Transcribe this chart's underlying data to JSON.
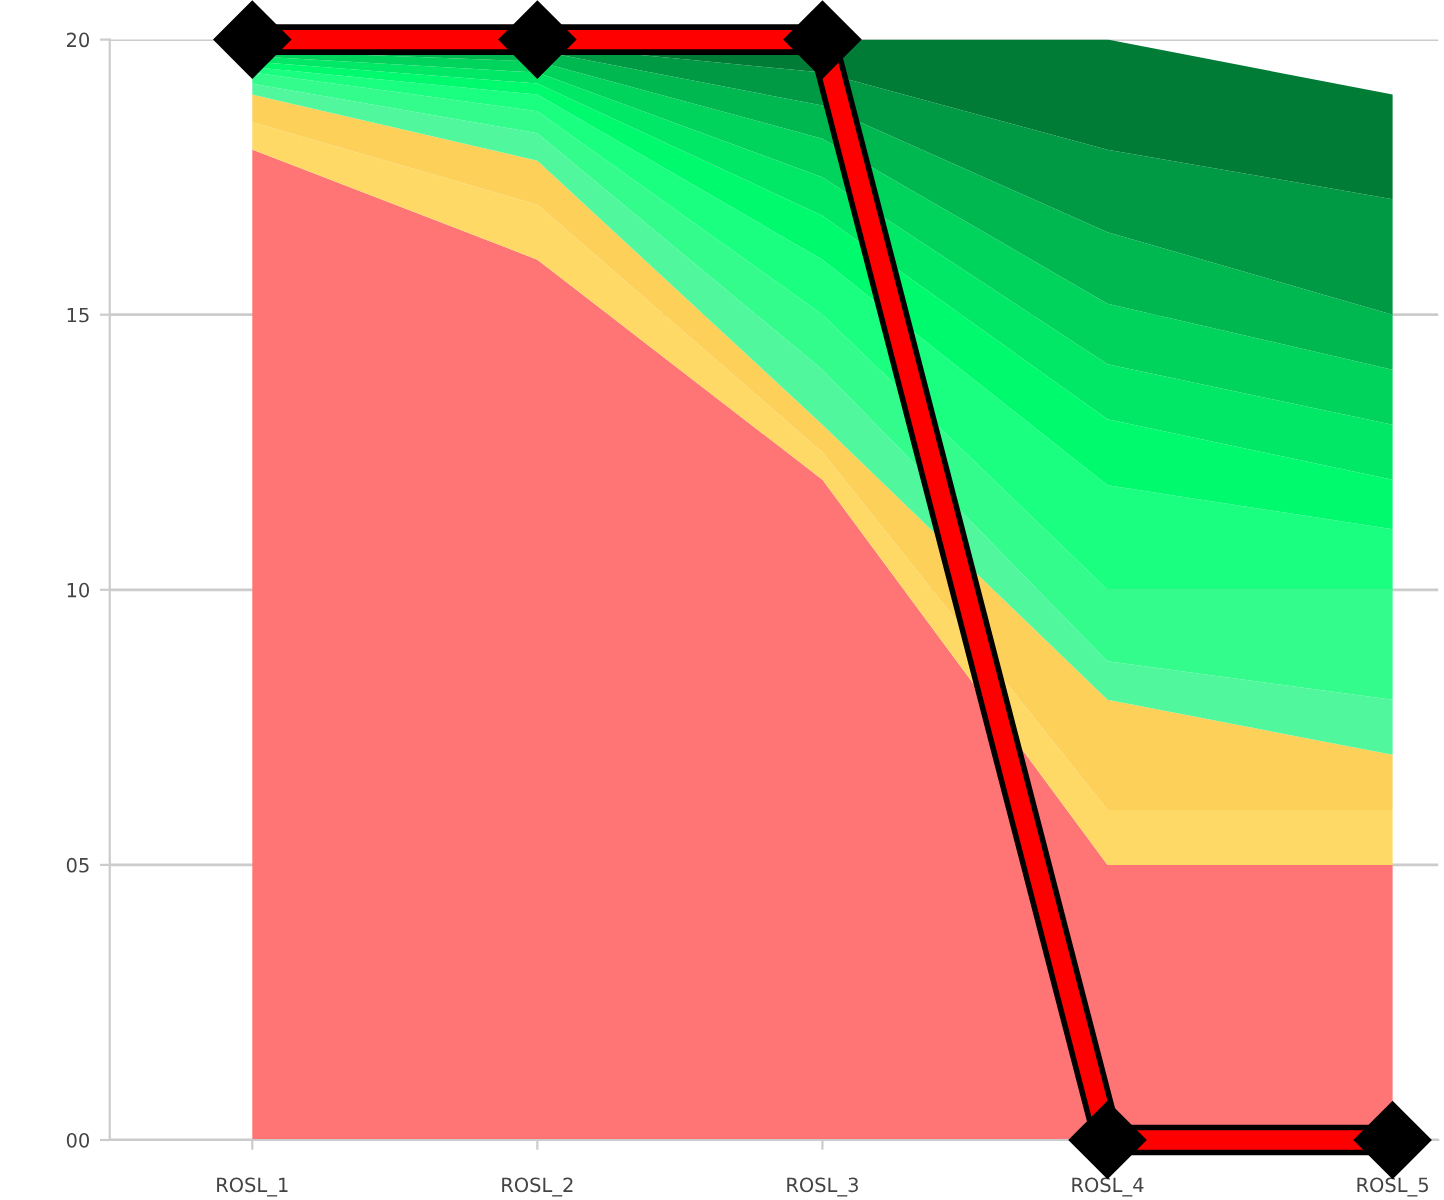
{
  "chart_data": {
    "type": "area",
    "stacked": true,
    "categories": [
      "ROSL_1",
      "ROSL_2",
      "ROSL_3",
      "ROSL_4",
      "ROSL_5"
    ],
    "ylim": [
      0,
      20
    ],
    "yticks": [
      {
        "value": 0,
        "label": "00"
      },
      {
        "value": 5,
        "label": "05"
      },
      10,
      15,
      20
    ],
    "grid": "y",
    "series": [
      {
        "color": "#ff7575",
        "values": [
          18,
          16,
          12,
          5,
          5
        ]
      },
      {
        "color": "#ffd966",
        "values": [
          0.5,
          1,
          0.5,
          1,
          1
        ]
      },
      {
        "color": "#fdd05a",
        "values": [
          0.5,
          0.8,
          0.5,
          2,
          1
        ]
      },
      {
        "color": "#50f79c",
        "values": [
          0.2,
          0.5,
          1,
          0.7,
          1
        ]
      },
      {
        "color": "#33fc8c",
        "values": [
          0.2,
          0.4,
          1,
          1.3,
          2
        ]
      },
      {
        "color": "#1aff80",
        "values": [
          0.1,
          0.3,
          1,
          1.9,
          1.1
        ]
      },
      {
        "color": "#00fa6e",
        "values": [
          0.1,
          0.2,
          0.8,
          1.2,
          0.9
        ]
      },
      {
        "color": "#00e866",
        "values": [
          0.1,
          0.2,
          0.7,
          1,
          1
        ]
      },
      {
        "color": "#00d45c",
        "values": [
          0.1,
          0.2,
          0.7,
          1.1,
          1
        ]
      },
      {
        "color": "#00b850",
        "values": [
          0.1,
          0.2,
          0.6,
          1.3,
          1
        ]
      },
      {
        "color": "#009a44",
        "values": [
          0.1,
          0.1,
          0.6,
          1.5,
          2.1
        ]
      },
      {
        "color": "#007c36",
        "values": [
          0,
          0.1,
          0.6,
          2,
          1.9
        ]
      },
      {
        "type": "line",
        "color": "#ff0000",
        "marker": "diamond",
        "values": [
          20,
          20,
          20,
          0,
          0
        ]
      }
    ]
  }
}
